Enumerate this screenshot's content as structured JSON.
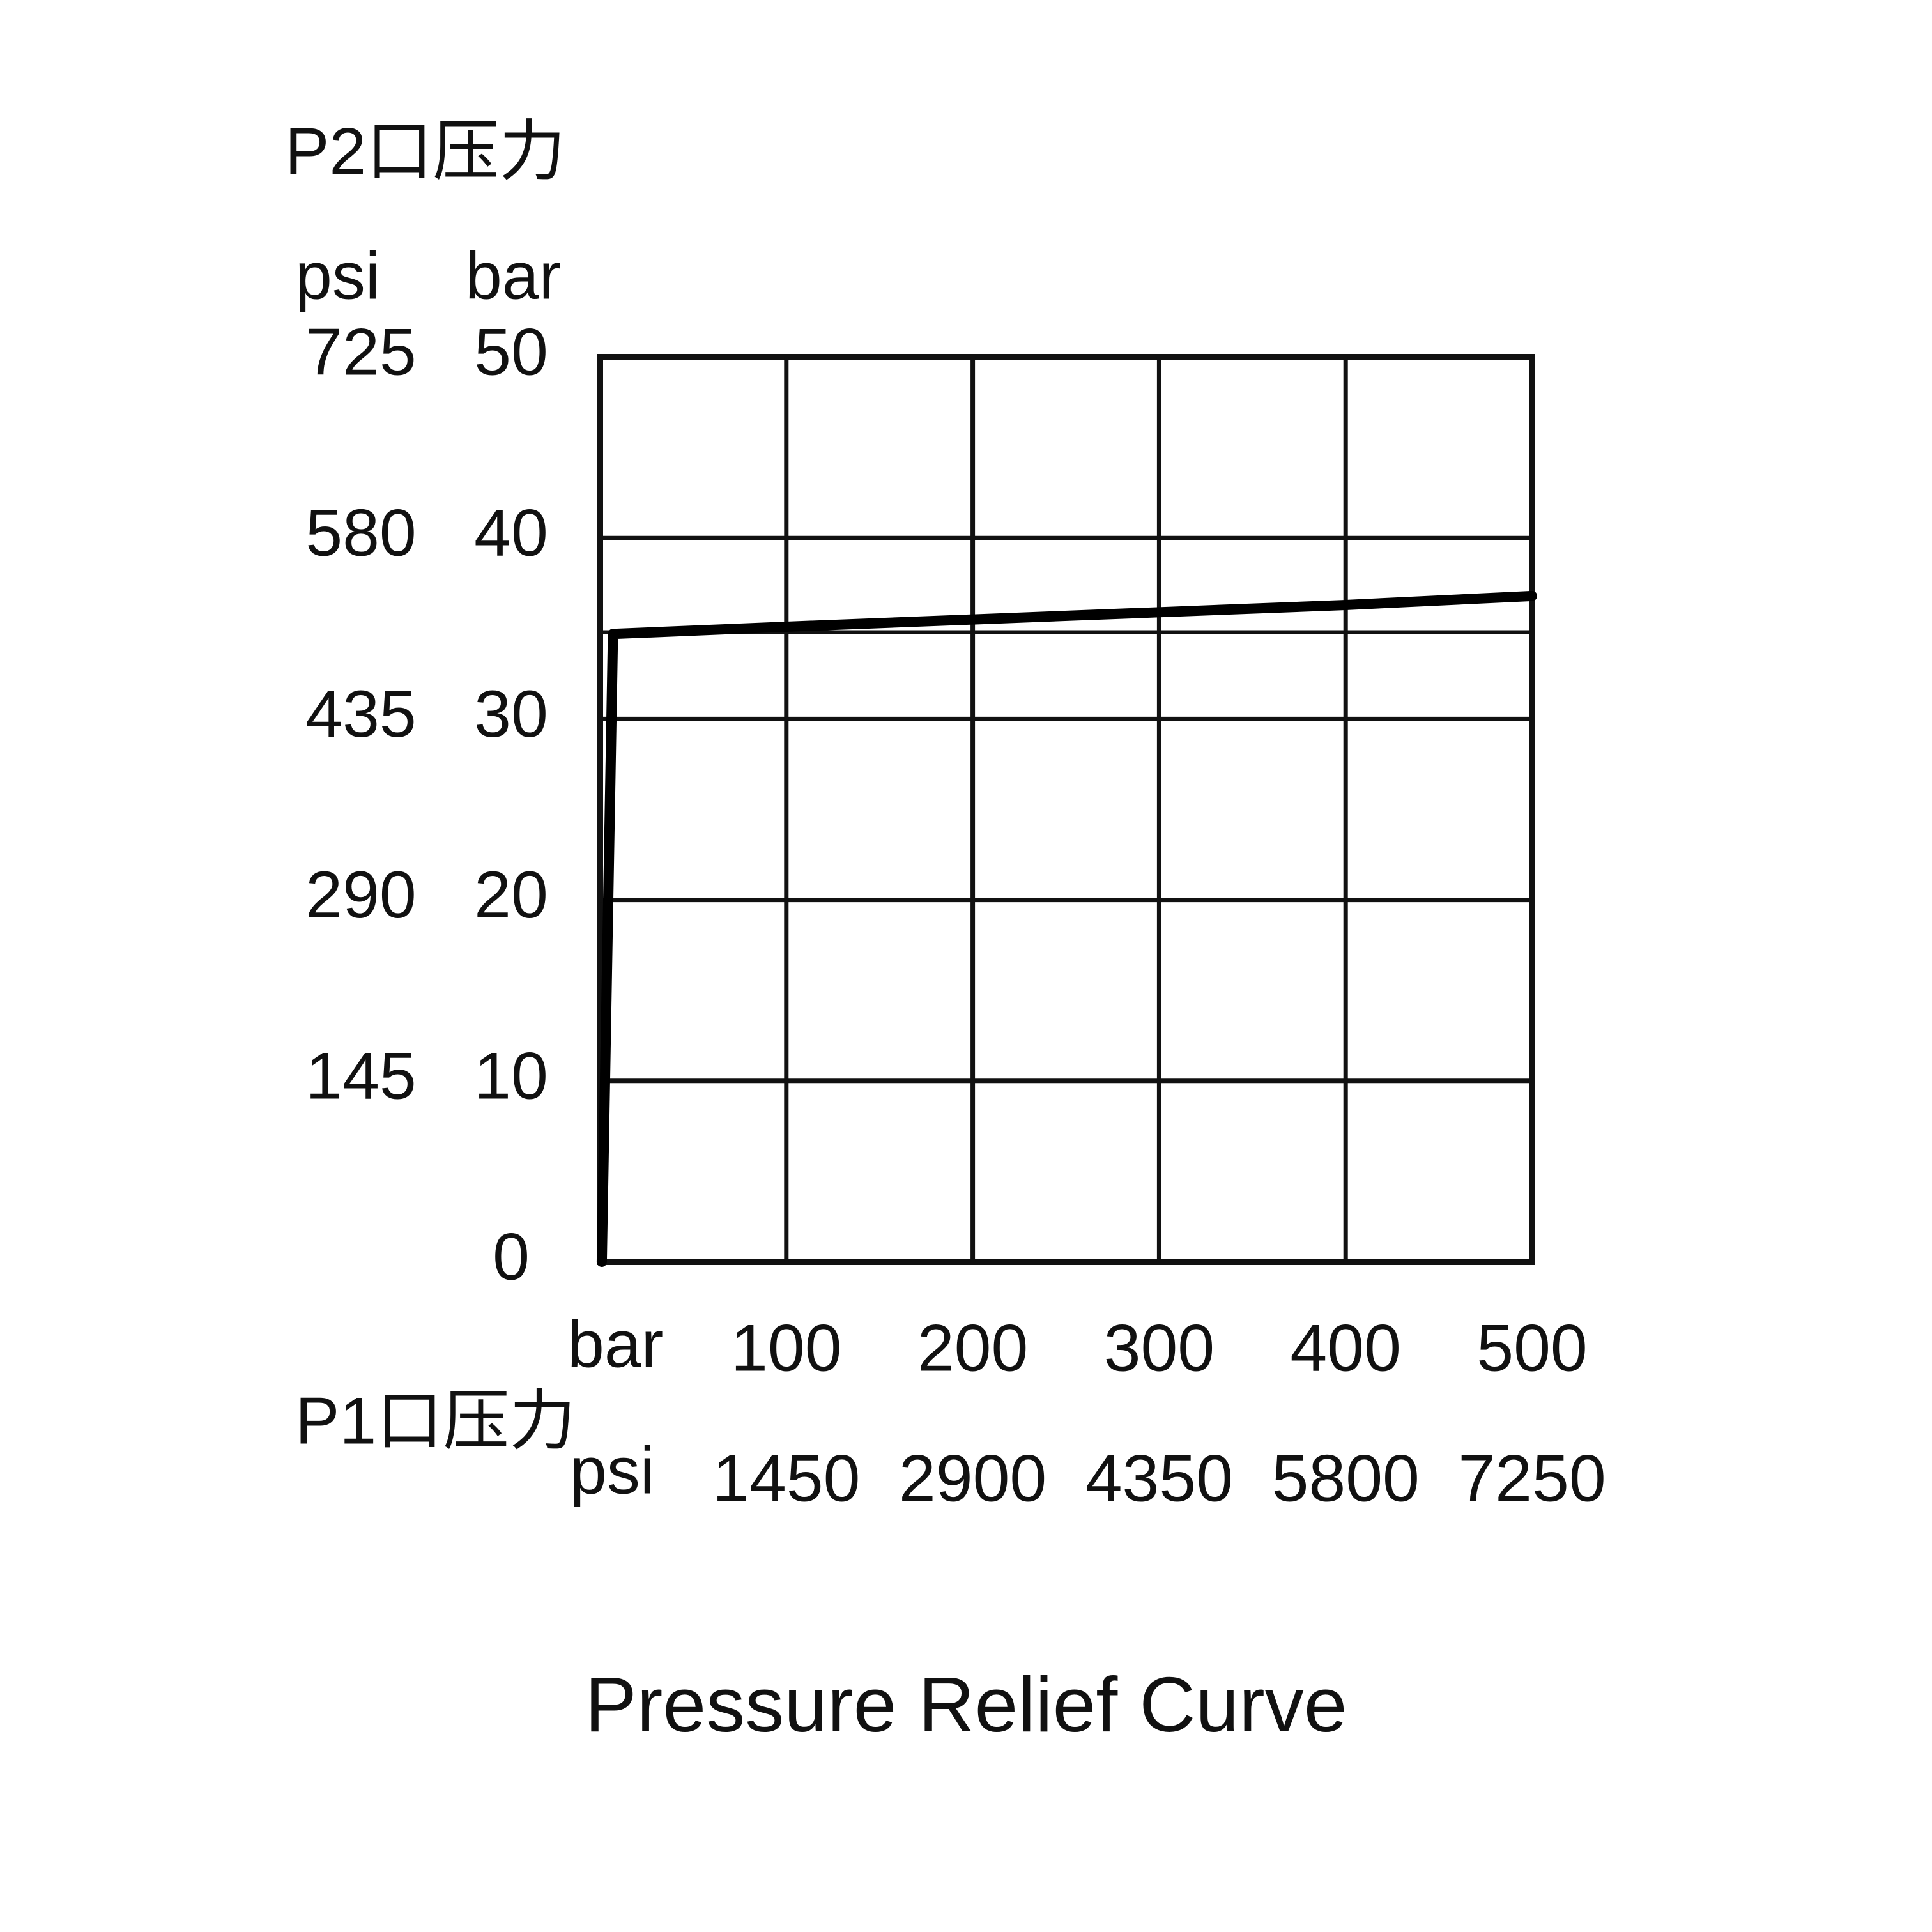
{
  "chart_data": {
    "type": "line",
    "title": "Pressure Relief Curve",
    "y_label": "P2口压力",
    "y_unit": "bar",
    "y2_unit": "psi",
    "x_label": "P1口压力",
    "x_unit": "bar",
    "x2_unit": "psi",
    "x": [
      1,
      7,
      100,
      200,
      300,
      400,
      500
    ],
    "values": [
      0,
      34.7,
      35.1,
      35.5,
      35.9,
      36.3,
      36.8
    ],
    "color": "#000000",
    "reference_line": 34.8,
    "xlim": [
      0,
      500
    ],
    "xticks": [
      100,
      200,
      300,
      400,
      500
    ],
    "x2lim": [
      0,
      7250
    ],
    "x2ticks": [
      1450,
      2900,
      4350,
      5800,
      7250
    ],
    "ylim": [
      0,
      50
    ],
    "yticks": [
      0,
      10,
      20,
      30,
      40,
      50
    ],
    "y2lim": [
      0,
      725
    ],
    "y2ticks": [
      145,
      290,
      435,
      580,
      725
    ],
    "grid": true
  }
}
